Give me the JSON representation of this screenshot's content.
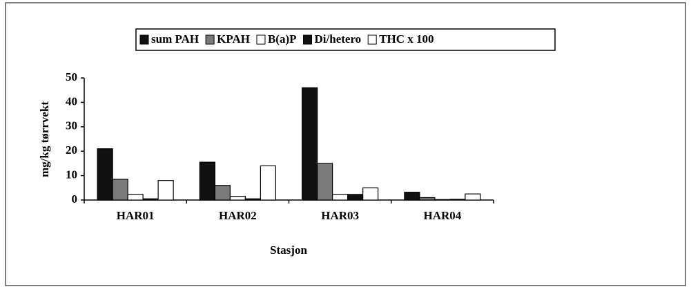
{
  "chart_data": {
    "type": "bar",
    "x_label": "Stasjon",
    "y_label": "mg/kg tørrvekt",
    "categories": [
      "HAR01",
      "HAR02",
      "HAR03",
      "HAR04"
    ],
    "series": [
      {
        "name": "sum PAH",
        "color": "#111111",
        "values": [
          21,
          15.5,
          46,
          3.2
        ]
      },
      {
        "name": "KPAH",
        "color": "#7a7a7a",
        "values": [
          8.5,
          6,
          15,
          1
        ]
      },
      {
        "name": "B(a)P",
        "color": "#ffffff",
        "values": [
          2.3,
          1.5,
          2.3,
          0.2
        ]
      },
      {
        "name": "Di/hetero",
        "color": "#111111",
        "values": [
          0.5,
          0.5,
          2.3,
          0.3
        ]
      },
      {
        "name": "THC x 100",
        "color": "#ffffff",
        "values": [
          8,
          14,
          5,
          2.5
        ]
      }
    ],
    "ylim": [
      0,
      50
    ],
    "yticks": [
      0,
      10,
      20,
      30,
      40,
      50
    ],
    "legend": "top"
  }
}
